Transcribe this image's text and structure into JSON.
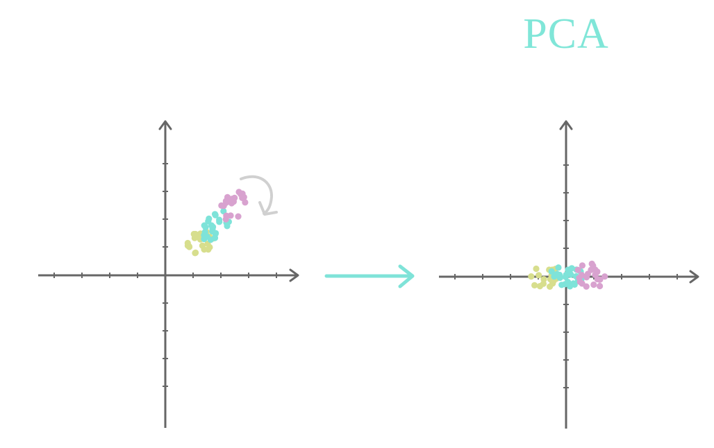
{
  "title": "PCA",
  "colors": {
    "axis": "#666666",
    "arrow": "#7fe3d8",
    "rotate_arrow": "#d0d0d0",
    "title": "#80e6d8",
    "cluster_pink": "#d8a2cf",
    "cluster_cyan": "#7ee3d9",
    "cluster_yellow": "#d7de8d"
  },
  "icons": {
    "rotation": "curved-rotate-arrow-icon",
    "transform": "right-arrow-icon"
  },
  "panels": [
    {
      "name": "original-data",
      "clusters": [
        "yellow",
        "cyan",
        "pink"
      ]
    },
    {
      "name": "pca-projected-data",
      "clusters": [
        "yellow",
        "cyan",
        "pink"
      ]
    }
  ]
}
